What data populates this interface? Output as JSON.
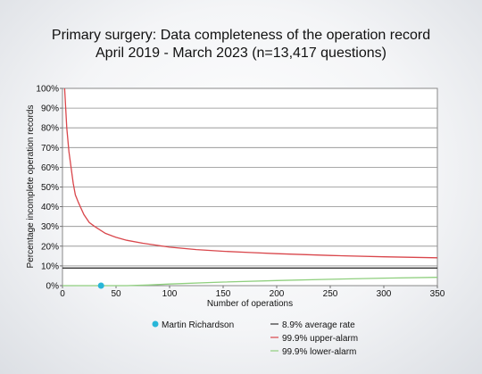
{
  "chart_data": {
    "type": "line",
    "title": "Primary surgery: Data completeness of the operation record",
    "subtitle": "April 2019 - March 2023 (n=13,417 questions)",
    "xlabel": "Number of operations",
    "ylabel": "Percentage incomplete operation records",
    "xlim": [
      0,
      350
    ],
    "ylim": [
      0,
      100
    ],
    "x_ticks": [
      0,
      50,
      100,
      150,
      200,
      250,
      300,
      350
    ],
    "y_ticks": [
      "0%",
      "10%",
      "20%",
      "30%",
      "40%",
      "50%",
      "60%",
      "70%",
      "80%",
      "90%",
      "100%"
    ],
    "grid": true,
    "legend_position": "bottom",
    "series": [
      {
        "name": "8.9% average rate",
        "color": "#333333",
        "x": [
          0,
          350
        ],
        "y": [
          8.9,
          8.9
        ]
      },
      {
        "name": "99.9% upper-alarm",
        "color": "#d9464b",
        "x": [
          2,
          4,
          6,
          8,
          10,
          12,
          15,
          20,
          25,
          30,
          40,
          50,
          60,
          75,
          100,
          125,
          150,
          175,
          200,
          250,
          300,
          350
        ],
        "y": [
          100,
          80,
          68,
          60,
          52,
          46,
          42,
          36,
          32,
          30,
          26.5,
          24.5,
          23,
          21.5,
          19.5,
          18.3,
          17.4,
          16.8,
          16.2,
          15.3,
          14.6,
          14.1
        ]
      },
      {
        "name": "99.9% lower-alarm",
        "color": "#8fcf7e",
        "x": [
          0,
          60,
          80,
          100,
          150,
          200,
          250,
          300,
          350
        ],
        "y": [
          0,
          0,
          0.3,
          0.8,
          1.8,
          2.6,
          3.2,
          3.8,
          4.2
        ]
      }
    ],
    "points": [
      {
        "name": "Martin Richardson",
        "color": "#29b6d8",
        "x": 36,
        "y": 0
      }
    ]
  }
}
